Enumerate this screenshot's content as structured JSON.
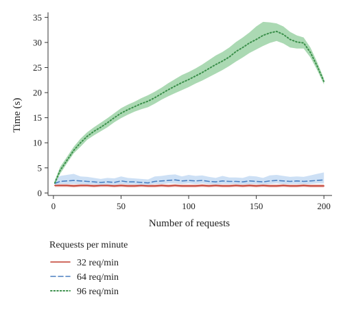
{
  "chart_data": {
    "type": "line",
    "xlabel": "Number of requests",
    "ylabel": "Time (s)",
    "xlim": [
      -4,
      206
    ],
    "ylim": [
      -0.5,
      36
    ],
    "xticks": [
      0,
      50,
      100,
      150,
      200
    ],
    "yticks": [
      0,
      5,
      10,
      15,
      20,
      25,
      30,
      35
    ],
    "grid": false,
    "legend": {
      "title": "Requests per minute",
      "placement": "below"
    },
    "x": [
      1,
      5,
      10,
      15,
      20,
      25,
      30,
      35,
      40,
      45,
      50,
      55,
      60,
      65,
      70,
      75,
      80,
      85,
      90,
      95,
      100,
      105,
      110,
      115,
      120,
      125,
      130,
      135,
      140,
      145,
      150,
      155,
      160,
      165,
      170,
      175,
      180,
      185,
      190,
      195,
      200
    ],
    "series": [
      {
        "name": "32 req/min",
        "style": "solid",
        "color": "#c0392b",
        "band_color": "#e6a6a0",
        "values": [
          1.5,
          1.5,
          1.5,
          1.4,
          1.5,
          1.5,
          1.4,
          1.5,
          1.5,
          1.4,
          1.5,
          1.4,
          1.4,
          1.5,
          1.4,
          1.4,
          1.5,
          1.4,
          1.5,
          1.4,
          1.4,
          1.4,
          1.5,
          1.4,
          1.5,
          1.4,
          1.4,
          1.5,
          1.4,
          1.5,
          1.4,
          1.5,
          1.4,
          1.4,
          1.5,
          1.4,
          1.4,
          1.5,
          1.4,
          1.4,
          1.4
        ],
        "lower": [
          1.2,
          1.2,
          1.2,
          1.1,
          1.2,
          1.2,
          1.1,
          1.2,
          1.2,
          1.1,
          1.2,
          1.1,
          1.1,
          1.2,
          1.1,
          1.1,
          1.2,
          1.1,
          1.2,
          1.1,
          1.1,
          1.1,
          1.2,
          1.1,
          1.2,
          1.1,
          1.1,
          1.2,
          1.1,
          1.2,
          1.1,
          1.2,
          1.1,
          1.1,
          1.2,
          1.1,
          1.1,
          1.2,
          1.1,
          1.1,
          1.1
        ],
        "upper": [
          1.8,
          1.8,
          1.8,
          1.7,
          1.8,
          1.8,
          1.7,
          1.8,
          1.8,
          1.7,
          1.8,
          1.7,
          1.7,
          1.8,
          1.7,
          1.7,
          1.8,
          1.7,
          1.8,
          1.7,
          1.7,
          1.7,
          1.8,
          1.7,
          1.8,
          1.7,
          1.7,
          1.8,
          1.7,
          1.8,
          1.7,
          1.8,
          1.7,
          1.7,
          1.8,
          1.7,
          1.7,
          1.8,
          1.7,
          1.7,
          1.7
        ]
      },
      {
        "name": "64 req/min",
        "style": "dashed",
        "color": "#4a7fc1",
        "band_color": "#bcd6f2",
        "values": [
          1.9,
          2.3,
          2.4,
          2.5,
          2.4,
          2.3,
          2.2,
          2.1,
          2.2,
          2.1,
          2.4,
          2.2,
          2.2,
          2.1,
          2.0,
          2.3,
          2.4,
          2.5,
          2.6,
          2.4,
          2.5,
          2.4,
          2.5,
          2.3,
          2.2,
          2.4,
          2.3,
          2.3,
          2.2,
          2.4,
          2.3,
          2.2,
          2.4,
          2.5,
          2.4,
          2.3,
          2.4,
          2.3,
          2.4,
          2.5,
          2.6
        ],
        "lower": [
          1.5,
          1.8,
          1.8,
          1.8,
          1.8,
          1.7,
          1.7,
          1.6,
          1.7,
          1.6,
          1.8,
          1.7,
          1.7,
          1.6,
          1.6,
          1.8,
          1.8,
          1.9,
          1.9,
          1.8,
          1.9,
          1.8,
          1.9,
          1.8,
          1.7,
          1.8,
          1.8,
          1.8,
          1.7,
          1.8,
          1.8,
          1.7,
          1.8,
          1.9,
          1.8,
          1.8,
          1.8,
          1.8,
          1.8,
          1.9,
          1.9
        ],
        "upper": [
          2.6,
          3.4,
          3.6,
          3.8,
          3.3,
          3.2,
          3.0,
          2.8,
          3.0,
          2.9,
          3.3,
          3.0,
          2.9,
          2.8,
          2.7,
          3.3,
          3.4,
          3.6,
          3.7,
          3.3,
          3.6,
          3.4,
          3.5,
          3.2,
          3.0,
          3.4,
          3.1,
          3.1,
          3.0,
          3.4,
          3.3,
          3.0,
          3.5,
          3.6,
          3.4,
          3.2,
          3.3,
          3.2,
          3.5,
          3.8,
          4.1
        ]
      },
      {
        "name": "96 req/min",
        "style": "dotted",
        "color": "#3a8f4a",
        "band_color": "#8fcc9a",
        "values": [
          2.0,
          4.5,
          6.5,
          8.5,
          10.0,
          11.3,
          12.3,
          13.1,
          14.0,
          15.0,
          15.9,
          16.6,
          17.2,
          17.8,
          18.3,
          19.0,
          19.8,
          20.6,
          21.3,
          22.0,
          22.6,
          23.3,
          24.0,
          24.8,
          25.6,
          26.3,
          27.1,
          28.2,
          29.0,
          29.9,
          30.6,
          31.4,
          31.9,
          32.2,
          31.6,
          30.6,
          30.1,
          29.9,
          28.0,
          25.3,
          22.2
        ],
        "lower": [
          1.6,
          3.8,
          5.9,
          7.9,
          9.2,
          10.6,
          11.5,
          12.3,
          13.1,
          14.1,
          14.9,
          15.6,
          16.2,
          16.7,
          17.1,
          17.8,
          18.6,
          19.3,
          19.9,
          20.5,
          21.1,
          21.8,
          22.4,
          23.1,
          23.8,
          24.5,
          25.3,
          26.2,
          27.0,
          27.9,
          28.6,
          29.3,
          29.9,
          30.3,
          29.8,
          29.0,
          28.8,
          28.8,
          27.0,
          24.5,
          21.6
        ],
        "upper": [
          2.5,
          5.2,
          7.2,
          9.2,
          10.8,
          12.1,
          13.1,
          14.0,
          14.9,
          15.9,
          16.9,
          17.6,
          18.2,
          18.9,
          19.5,
          20.2,
          21.0,
          21.9,
          22.7,
          23.5,
          24.1,
          24.8,
          25.6,
          26.5,
          27.4,
          28.1,
          29.0,
          30.1,
          31.0,
          32.0,
          33.2,
          34.1,
          34.0,
          33.8,
          33.2,
          32.1,
          31.4,
          31.0,
          29.0,
          26.1,
          22.8
        ]
      }
    ]
  }
}
